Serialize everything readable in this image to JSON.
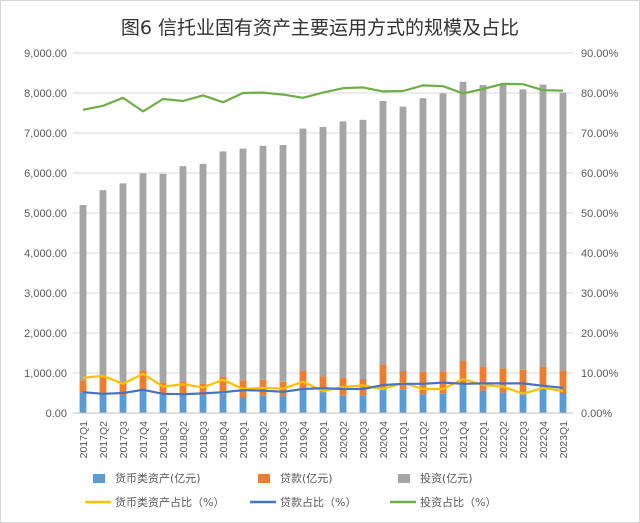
{
  "chart_data": {
    "type": "bar",
    "title": "图6  信托业固有资产主要运用方式的规模及占比",
    "categories": [
      "2017Q1",
      "2017Q2",
      "2017Q3",
      "2017Q4",
      "2018Q1",
      "2018Q2",
      "2018Q3",
      "2018Q4",
      "2019Q1",
      "2019Q2",
      "2019Q3",
      "2019Q4",
      "2020Q1",
      "2020Q2",
      "2020Q3",
      "2020Q4",
      "2021Q1",
      "2021Q2",
      "2021Q3",
      "2021Q4",
      "2022Q1",
      "2022Q2",
      "2022Q3",
      "2022Q4",
      "2023Q1"
    ],
    "stacked": true,
    "y_left": {
      "min": 0,
      "max": 9000,
      "ticks": [
        "0.00",
        "1,000.00",
        "2,000.00",
        "3,000.00",
        "4,000.00",
        "5,000.00",
        "6,000.00",
        "7,000.00",
        "8,000.00",
        "9,000.00"
      ]
    },
    "y_right": {
      "min": 0,
      "max": 90,
      "ticks": [
        "0.00%",
        "10.00%",
        "20.00%",
        "30.00%",
        "40.00%",
        "50.00%",
        "60.00%",
        "70.00%",
        "80.00%",
        "90.00%"
      ]
    },
    "grid": true,
    "legend_position": "bottom",
    "series": [
      {
        "name": "货币类资产(亿元)",
        "kind": "bar",
        "axis": "left",
        "color": "#5B9BD5",
        "values": [
          520,
          470,
          450,
          570,
          470,
          450,
          440,
          480,
          400,
          430,
          420,
          580,
          520,
          430,
          440,
          620,
          580,
          470,
          480,
          740,
          560,
          510,
          520,
          600,
          500
        ]
      },
      {
        "name": "贷款(亿元)",
        "kind": "bar",
        "axis": "left",
        "color": "#ED7D31",
        "values": [
          300,
          420,
          290,
          500,
          290,
          340,
          290,
          430,
          420,
          400,
          360,
          470,
          400,
          450,
          410,
          580,
          470,
          560,
          560,
          560,
          600,
          610,
          560,
          560,
          560
        ]
      },
      {
        "name": "投资(亿元)",
        "kind": "bar",
        "axis": "left",
        "color": "#A5A5A5",
        "values": [
          4380,
          4680,
          5000,
          4920,
          5220,
          5380,
          5500,
          5630,
          5790,
          5850,
          5920,
          6060,
          6230,
          6410,
          6480,
          6600,
          6610,
          6840,
          6950,
          6980,
          7040,
          7120,
          7010,
          7050,
          6950
        ]
      },
      {
        "name": "货币类资产占比（%）",
        "kind": "line",
        "axis": "right",
        "color": "#FFC000",
        "values": [
          8.8,
          9.3,
          7.3,
          9.8,
          6.6,
          7.2,
          6.4,
          8.3,
          6.0,
          6.3,
          6.1,
          7.8,
          5.5,
          6.5,
          6.9,
          6.0,
          7.5,
          6.0,
          6.0,
          8.5,
          7.0,
          6.6,
          4.8,
          6.3,
          5.5
        ]
      },
      {
        "name": "贷款占比（%）",
        "kind": "line",
        "axis": "right",
        "color": "#4472C4",
        "values": [
          5.2,
          4.8,
          5.0,
          5.8,
          4.8,
          4.7,
          4.9,
          5.2,
          5.7,
          5.6,
          5.3,
          6.0,
          6.2,
          6.0,
          6.0,
          7.0,
          7.3,
          7.3,
          7.6,
          7.3,
          7.4,
          7.4,
          7.4,
          6.8,
          6.3
        ]
      },
      {
        "name": "投资占比（%）",
        "kind": "line",
        "axis": "right",
        "color": "#70AD47",
        "values": [
          75.8,
          76.8,
          78.8,
          75.4,
          78.5,
          78.0,
          79.4,
          77.7,
          80.0,
          80.1,
          79.6,
          78.8,
          80.1,
          81.2,
          81.4,
          80.4,
          80.5,
          81.9,
          81.7,
          79.9,
          81.0,
          82.3,
          82.2,
          80.7,
          80.6
        ]
      }
    ]
  }
}
